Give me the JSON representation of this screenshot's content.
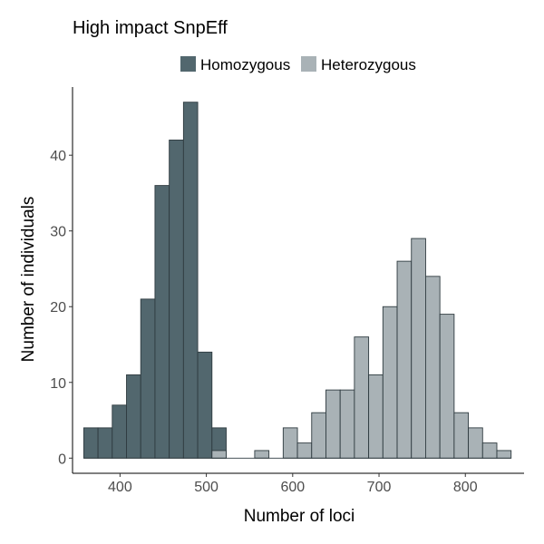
{
  "chart_data": {
    "type": "bar",
    "title": "High impact SnpEff",
    "xlabel": "Number of loci",
    "ylabel": "Number of individuals",
    "xlim": [
      345,
      868
    ],
    "ylim": [
      -2,
      49
    ],
    "xticks": [
      400,
      500,
      600,
      700,
      800
    ],
    "yticks": [
      0,
      10,
      20,
      30,
      40
    ],
    "grid": false,
    "legend_position": "top",
    "bin_width": 16.5,
    "series": [
      {
        "name": "Homozygous",
        "color": "#52676e",
        "bins": [
          {
            "x_start": 358,
            "count": 4
          },
          {
            "x_start": 374.5,
            "count": 4
          },
          {
            "x_start": 391,
            "count": 7
          },
          {
            "x_start": 407.5,
            "count": 11
          },
          {
            "x_start": 424,
            "count": 21
          },
          {
            "x_start": 440.5,
            "count": 36
          },
          {
            "x_start": 457,
            "count": 42
          },
          {
            "x_start": 473.5,
            "count": 47
          },
          {
            "x_start": 490,
            "count": 14
          },
          {
            "x_start": 506.5,
            "count": 4
          }
        ]
      },
      {
        "name": "Heterozygous",
        "color": "#a9b2b6",
        "bins": [
          {
            "x_start": 506.5,
            "count": 1
          },
          {
            "x_start": 556,
            "count": 1
          },
          {
            "x_start": 589,
            "count": 4
          },
          {
            "x_start": 605.5,
            "count": 2
          },
          {
            "x_start": 622,
            "count": 6
          },
          {
            "x_start": 638.5,
            "count": 9
          },
          {
            "x_start": 655,
            "count": 9
          },
          {
            "x_start": 671.5,
            "count": 16
          },
          {
            "x_start": 688,
            "count": 11
          },
          {
            "x_start": 704.5,
            "count": 20
          },
          {
            "x_start": 721,
            "count": 26
          },
          {
            "x_start": 737.5,
            "count": 29
          },
          {
            "x_start": 754,
            "count": 24
          },
          {
            "x_start": 770.5,
            "count": 19
          },
          {
            "x_start": 787,
            "count": 6
          },
          {
            "x_start": 803.5,
            "count": 4
          },
          {
            "x_start": 820,
            "count": 2
          },
          {
            "x_start": 836.5,
            "count": 1
          }
        ]
      }
    ]
  }
}
